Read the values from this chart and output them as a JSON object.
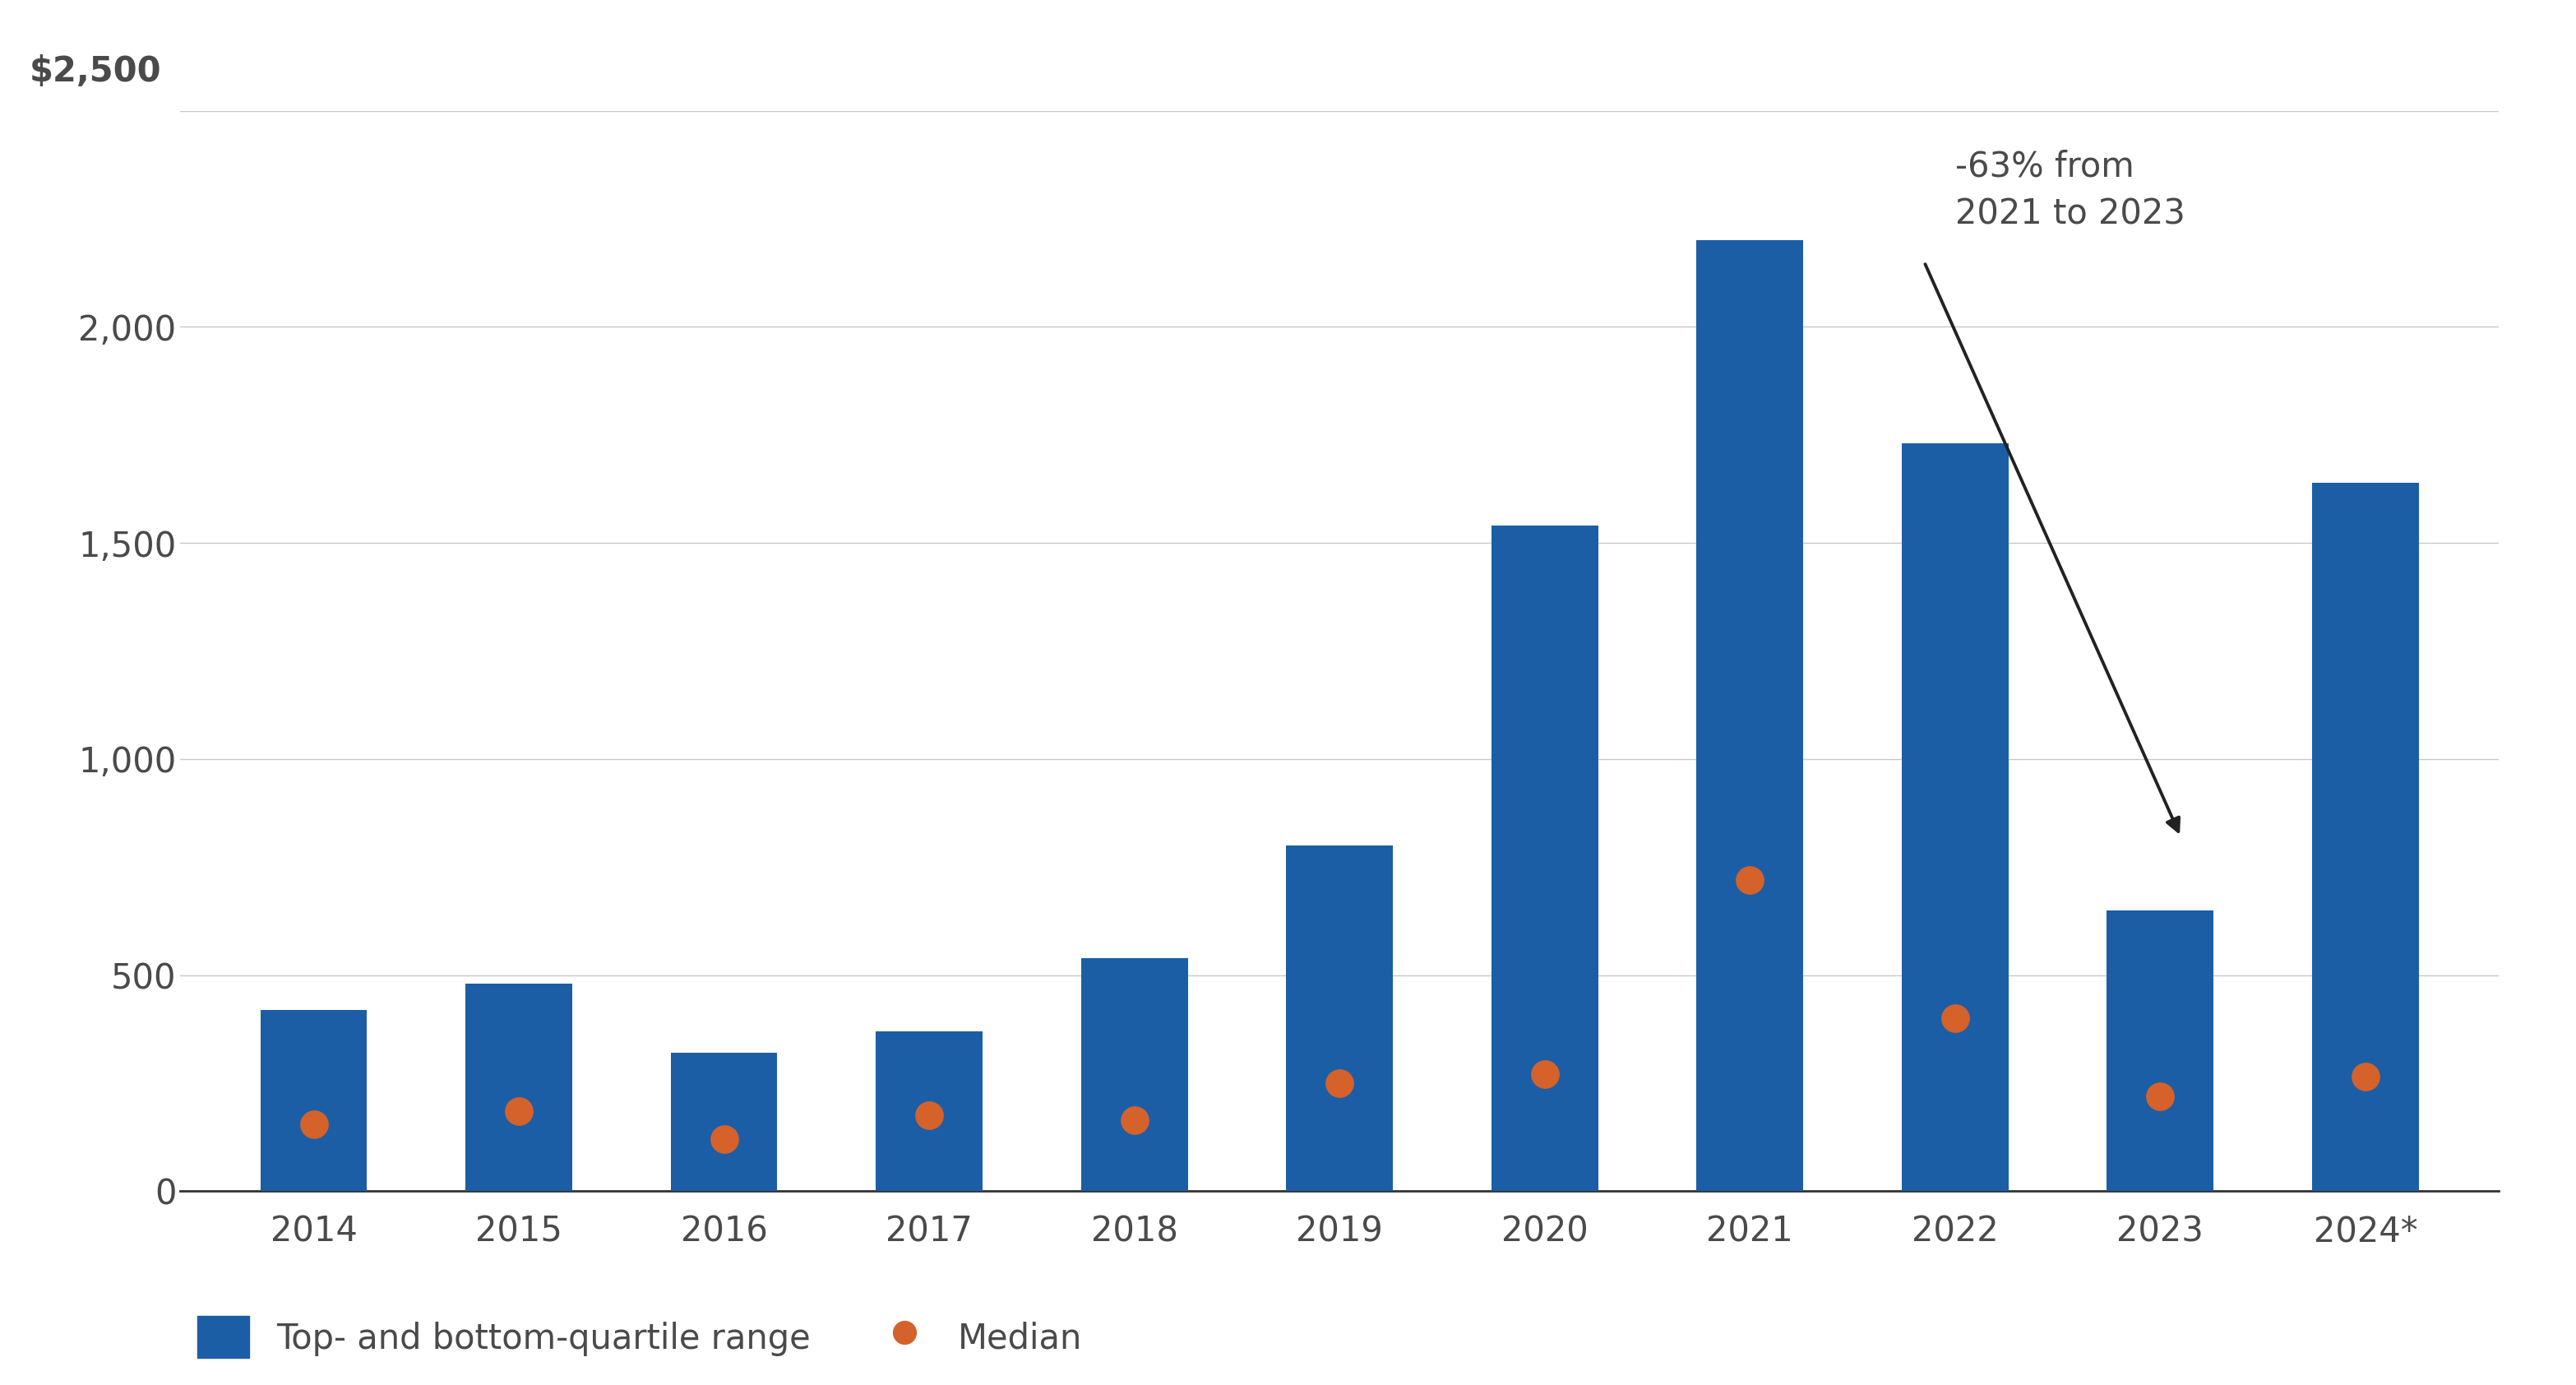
{
  "years": [
    "2014",
    "2015",
    "2016",
    "2017",
    "2018",
    "2019",
    "2020",
    "2021",
    "2022",
    "2023",
    "2024*"
  ],
  "bar_tops": [
    420,
    480,
    320,
    370,
    540,
    800,
    1540,
    2200,
    1730,
    650,
    1640
  ],
  "medians": [
    155,
    185,
    120,
    175,
    165,
    250,
    270,
    720,
    400,
    220,
    265
  ],
  "bar_color": "#1B5EA6",
  "median_color": "#D4622A",
  "background_color": "#FFFFFF",
  "gridline_color": "#C8C8C8",
  "text_color": "#4A4A4A",
  "ylim": [
    0,
    2500
  ],
  "yticks": [
    0,
    500,
    1000,
    1500,
    2000
  ],
  "ytick_labels": [
    "0",
    "500",
    "1,000",
    "1,500",
    "2,000"
  ],
  "top_label": "$2,500",
  "annotation_text": "-63% from\n2021 to 2023",
  "legend_bar_label": "Top- and bottom-quartile range",
  "legend_median_label": "Median"
}
